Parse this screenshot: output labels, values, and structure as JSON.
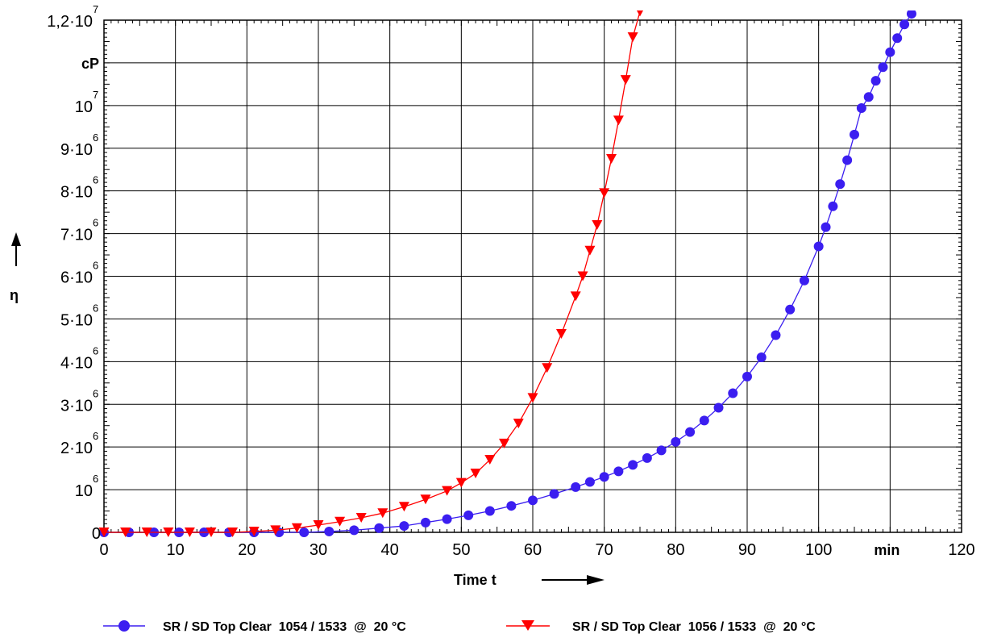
{
  "chart_data": {
    "type": "scatter",
    "title": "",
    "xlabel": "Time t",
    "ylabel": "η",
    "x_unit": "min",
    "y_unit": "cP",
    "xlim": [
      0,
      120
    ],
    "ylim": [
      0,
      12000000
    ],
    "grid": true,
    "legend_position": "bottom",
    "x_ticks": [
      "0",
      "10",
      "20",
      "30",
      "40",
      "50",
      "60",
      "70",
      "80",
      "90",
      "100",
      "min",
      "120"
    ],
    "y_ticks": [
      {
        "mantissa": "0",
        "exponent": ""
      },
      {
        "mantissa": "10",
        "exponent": "6"
      },
      {
        "mantissa": "2·10",
        "exponent": "6"
      },
      {
        "mantissa": "3·10",
        "exponent": "6"
      },
      {
        "mantissa": "4·10",
        "exponent": "6"
      },
      {
        "mantissa": "5·10",
        "exponent": "6"
      },
      {
        "mantissa": "6·10",
        "exponent": "6"
      },
      {
        "mantissa": "7·10",
        "exponent": "6"
      },
      {
        "mantissa": "8·10",
        "exponent": "6"
      },
      {
        "mantissa": "9·10",
        "exponent": "6"
      },
      {
        "mantissa": "10",
        "exponent": "7"
      },
      {
        "mantissa": "cP",
        "exponent": ""
      },
      {
        "mantissa": "1,2·10",
        "exponent": "7"
      }
    ],
    "series": [
      {
        "name": "SR / SD Top Clear  1054 / 1533  @  20 °C",
        "color": "#3b1ef0",
        "marker": "circle",
        "x": [
          0,
          3.5,
          7,
          10.5,
          14,
          17.5,
          21,
          24.5,
          28,
          31.5,
          35,
          38.5,
          42,
          45,
          48,
          51,
          54,
          57,
          60,
          63,
          66,
          68,
          70,
          72,
          74,
          76,
          78,
          80,
          82,
          84,
          86,
          88,
          90,
          92,
          94,
          96,
          98,
          100,
          101,
          102,
          103,
          104,
          105,
          106,
          107,
          108,
          109,
          110,
          111,
          112,
          113
        ],
        "y": [
          0,
          0,
          0,
          0,
          0,
          0,
          0,
          0,
          0,
          20000,
          50000,
          100000,
          150000,
          230000,
          310000,
          400000,
          500000,
          620000,
          750000,
          900000,
          1060000,
          1180000,
          1300000,
          1430000,
          1580000,
          1740000,
          1920000,
          2120000,
          2350000,
          2620000,
          2920000,
          3260000,
          3650000,
          4100000,
          4620000,
          5220000,
          5900000,
          6700000,
          7150000,
          7640000,
          8160000,
          8720000,
          9320000,
          9940000,
          10200000,
          10580000,
          10900000,
          11250000,
          11580000,
          11900000,
          12150000
        ]
      },
      {
        "name": "SR / SD Top Clear  1056 / 1533  @  20 °C",
        "color": "#ff0000",
        "marker": "triangle-down",
        "x": [
          0,
          3,
          6,
          9,
          12,
          15,
          18,
          21,
          24,
          27,
          30,
          33,
          36,
          39,
          42,
          45,
          48,
          50,
          52,
          54,
          56,
          58,
          60,
          62,
          64,
          66,
          67,
          68,
          69,
          70,
          71,
          72,
          73,
          74,
          75
        ],
        "y": [
          0,
          0,
          0,
          0,
          0,
          0,
          0,
          20000,
          50000,
          100000,
          170000,
          250000,
          340000,
          450000,
          600000,
          770000,
          970000,
          1160000,
          1380000,
          1700000,
          2080000,
          2550000,
          3150000,
          3850000,
          4650000,
          5530000,
          6000000,
          6600000,
          7200000,
          7950000,
          8750000,
          9650000,
          10600000,
          11600000,
          12200000
        ]
      }
    ]
  }
}
